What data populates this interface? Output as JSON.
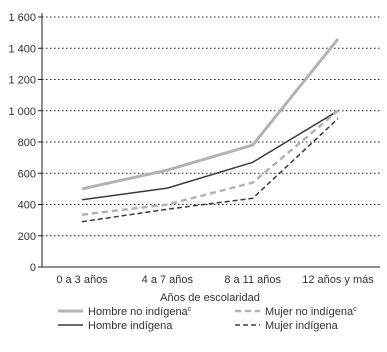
{
  "chart_data": {
    "type": "line",
    "categories": [
      "0 a 3 años",
      "4 a 7 años",
      "8 a 11 años",
      "12 años y más"
    ],
    "xlabel": "Años de escolaridad",
    "ylabel": "",
    "ylim": [
      0,
      1600
    ],
    "yticks": [
      0,
      200,
      400,
      600,
      800,
      1000,
      1200,
      1400,
      1600
    ],
    "ytick_labels": [
      "0",
      "200",
      "400",
      "600",
      "800",
      "1 000",
      "1 200",
      "1 400",
      "1 600"
    ],
    "grid": "horizontal dotted",
    "legend_position": "bottom",
    "series": [
      {
        "name": "Hombre no indígena",
        "name_suffix": "c",
        "values": [
          500,
          620,
          780,
          1460
        ],
        "color": "#b3b3b3",
        "style": "solid"
      },
      {
        "name": "Hombre indígena",
        "values": [
          430,
          505,
          670,
          1000
        ],
        "color": "#3a3a3a",
        "style": "solid"
      },
      {
        "name": "Mujer no indígena",
        "name_suffix": "c",
        "values": [
          335,
          400,
          540,
          1000
        ],
        "color": "#b3b3b3",
        "style": "dashed"
      },
      {
        "name": "Mujer indígena",
        "values": [
          290,
          370,
          440,
          950
        ],
        "color": "#3a3a3a",
        "style": "dashed"
      }
    ]
  }
}
